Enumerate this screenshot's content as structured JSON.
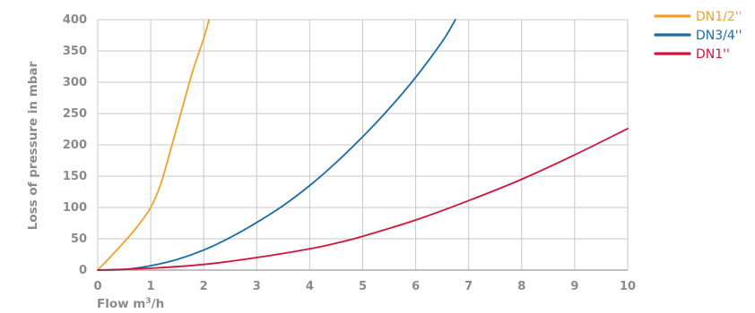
{
  "chart_data": {
    "type": "line",
    "xlabel_main": "Flow m",
    "xlabel_sup": "3",
    "xlabel_tail": "/h",
    "ylabel": "Loss of pressure in mbar",
    "xlim": [
      0,
      10
    ],
    "ylim": [
      0,
      400
    ],
    "x_ticks": [
      "0",
      "1",
      "2",
      "3",
      "4",
      "5",
      "6",
      "7",
      "8",
      "9",
      "10"
    ],
    "y_ticks": [
      "0",
      "50",
      "100",
      "150",
      "200",
      "250",
      "300",
      "350",
      "400"
    ],
    "grid": true,
    "legend_position": "right",
    "series": [
      {
        "name": "DN1/2''",
        "color": "#f0a030",
        "points": [
          [
            0,
            0
          ],
          [
            0.25,
            22
          ],
          [
            0.5,
            45
          ],
          [
            0.75,
            70
          ],
          [
            1.0,
            100
          ],
          [
            1.2,
            140
          ],
          [
            1.4,
            200
          ],
          [
            1.6,
            260
          ],
          [
            1.8,
            320
          ],
          [
            2.0,
            370
          ],
          [
            2.1,
            400
          ]
        ]
      },
      {
        "name": "DN3/4''",
        "color": "#1a6aa5",
        "points": [
          [
            0,
            0
          ],
          [
            0.5,
            1
          ],
          [
            1.0,
            7
          ],
          [
            1.5,
            17
          ],
          [
            2.0,
            32
          ],
          [
            2.5,
            52
          ],
          [
            3.0,
            76
          ],
          [
            3.5,
            103
          ],
          [
            4.0,
            135
          ],
          [
            4.5,
            172
          ],
          [
            5.0,
            213
          ],
          [
            5.5,
            258
          ],
          [
            6.0,
            308
          ],
          [
            6.5,
            365
          ],
          [
            6.75,
            400
          ]
        ]
      },
      {
        "name": "DN1''",
        "color": "#d0143c",
        "points": [
          [
            0,
            0
          ],
          [
            1.0,
            3
          ],
          [
            2.0,
            9
          ],
          [
            3.0,
            20
          ],
          [
            4.0,
            34
          ],
          [
            4.5,
            43
          ],
          [
            5.0,
            54
          ],
          [
            6.0,
            80
          ],
          [
            7.0,
            111
          ],
          [
            8.0,
            145
          ],
          [
            9.0,
            184
          ],
          [
            10.0,
            226
          ]
        ]
      }
    ]
  }
}
